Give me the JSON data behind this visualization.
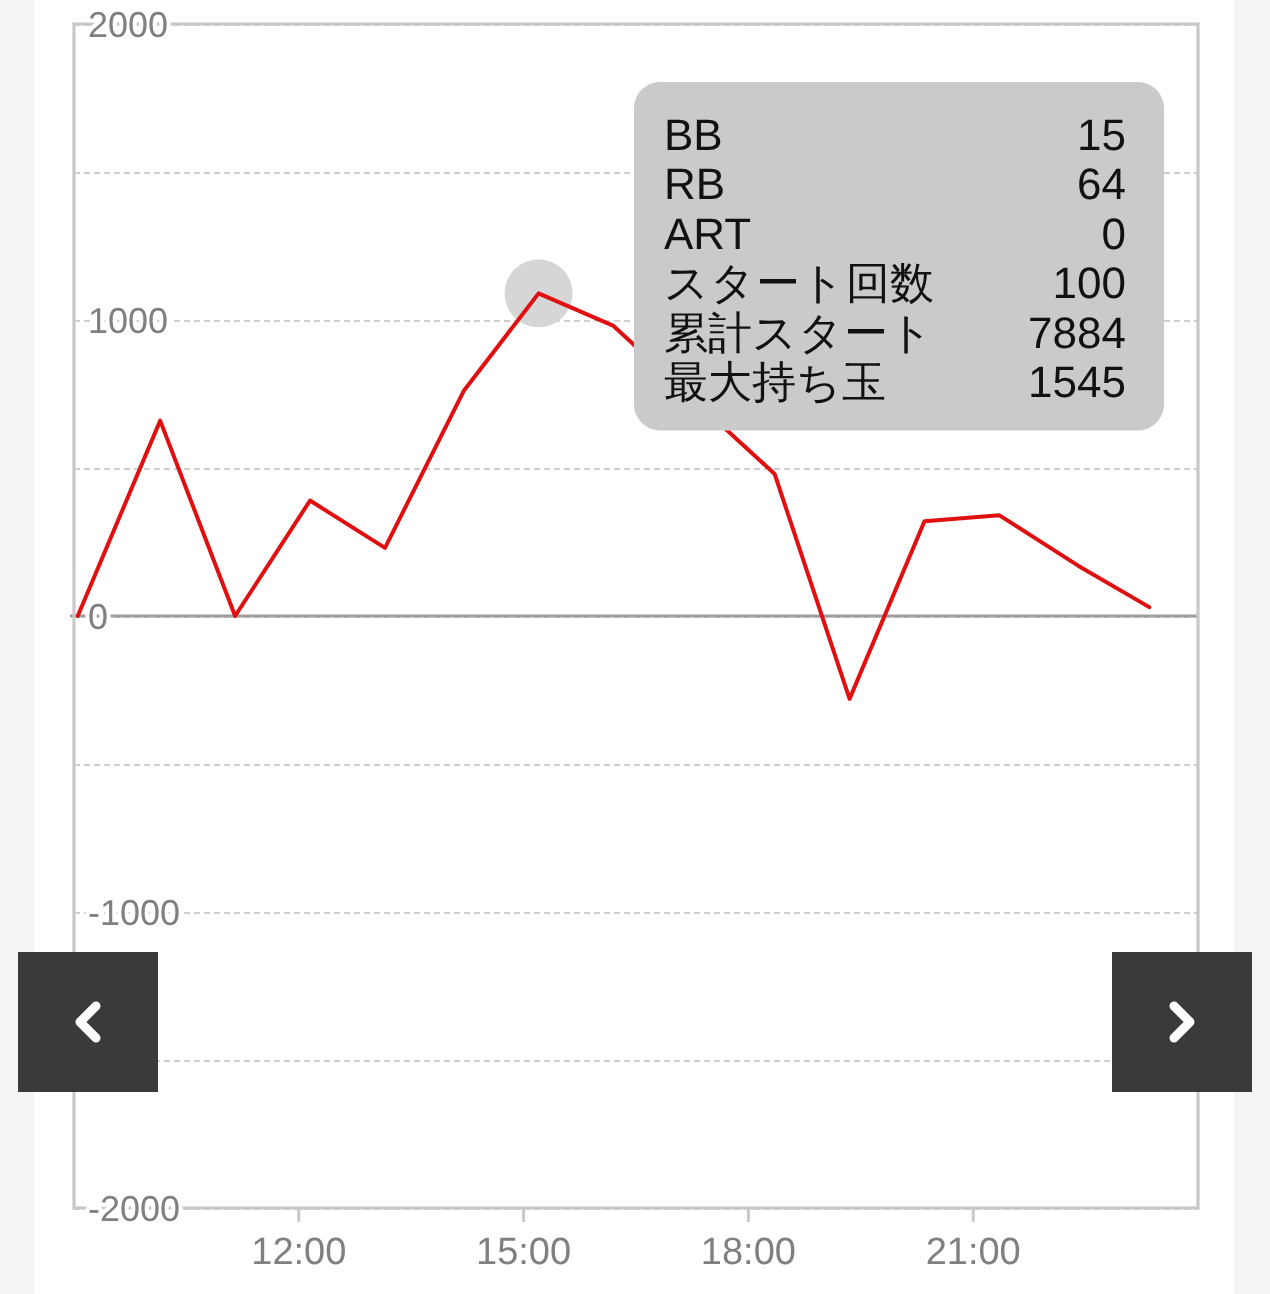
{
  "chart_data": {
    "type": "line",
    "series": [
      {
        "type": "scatter",
        "color": "#d6d6d6",
        "marker": "circle",
        "x": [
          15.2
        ],
        "values": [
          1090
        ]
      },
      {
        "color": "#e01010",
        "x": [
          9.05,
          10.15,
          11.15,
          12.15,
          13.15,
          14.2,
          15.2,
          16.2,
          18.35,
          19.35,
          20.35,
          21.35,
          22.4,
          23.35
        ],
        "values": [
          0,
          660,
          0,
          390,
          230,
          760,
          1090,
          980,
          480,
          -280,
          320,
          340,
          170,
          30
        ]
      }
    ],
    "xlim": [
      9,
      24
    ],
    "xticks": [
      {
        "value": 12,
        "label": "12:00"
      },
      {
        "value": 15,
        "label": "15:00"
      },
      {
        "value": 18,
        "label": "18:00"
      },
      {
        "value": 21,
        "label": "21:00"
      }
    ],
    "ylim": [
      -2000,
      2000
    ],
    "yticks": [
      2000,
      {
        "value": 1500,
        "label": null
      },
      1000,
      {
        "value": 500,
        "label": null
      },
      0,
      {
        "value": -500,
        "label": null
      },
      -1000,
      {
        "value": -1500,
        "label": null
      },
      -2000
    ],
    "grid": "y",
    "ref_lines": [
      {
        "axis": "y",
        "value": 0,
        "color": "#9e9e9e"
      }
    ],
    "annotations": [
      "BB",
      "15",
      "RB",
      "64",
      "ART",
      "0",
      "スタート回数",
      "100",
      "累計スタート",
      "7884",
      "最大持ち玉",
      "1545"
    ]
  }
}
